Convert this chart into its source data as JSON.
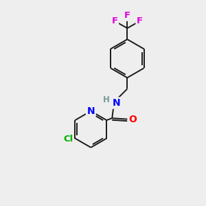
{
  "background_color": "#eeeeee",
  "bond_color": "#1a1a1a",
  "bond_width": 1.4,
  "atom_colors": {
    "F": "#e000e0",
    "Cl": "#00b000",
    "N": "#0000ff",
    "O": "#ff0000",
    "H": "#7a9a9a",
    "C": "#1a1a1a"
  },
  "font_size": 9.5,
  "figsize": [
    3.0,
    3.0
  ],
  "dpi": 100
}
